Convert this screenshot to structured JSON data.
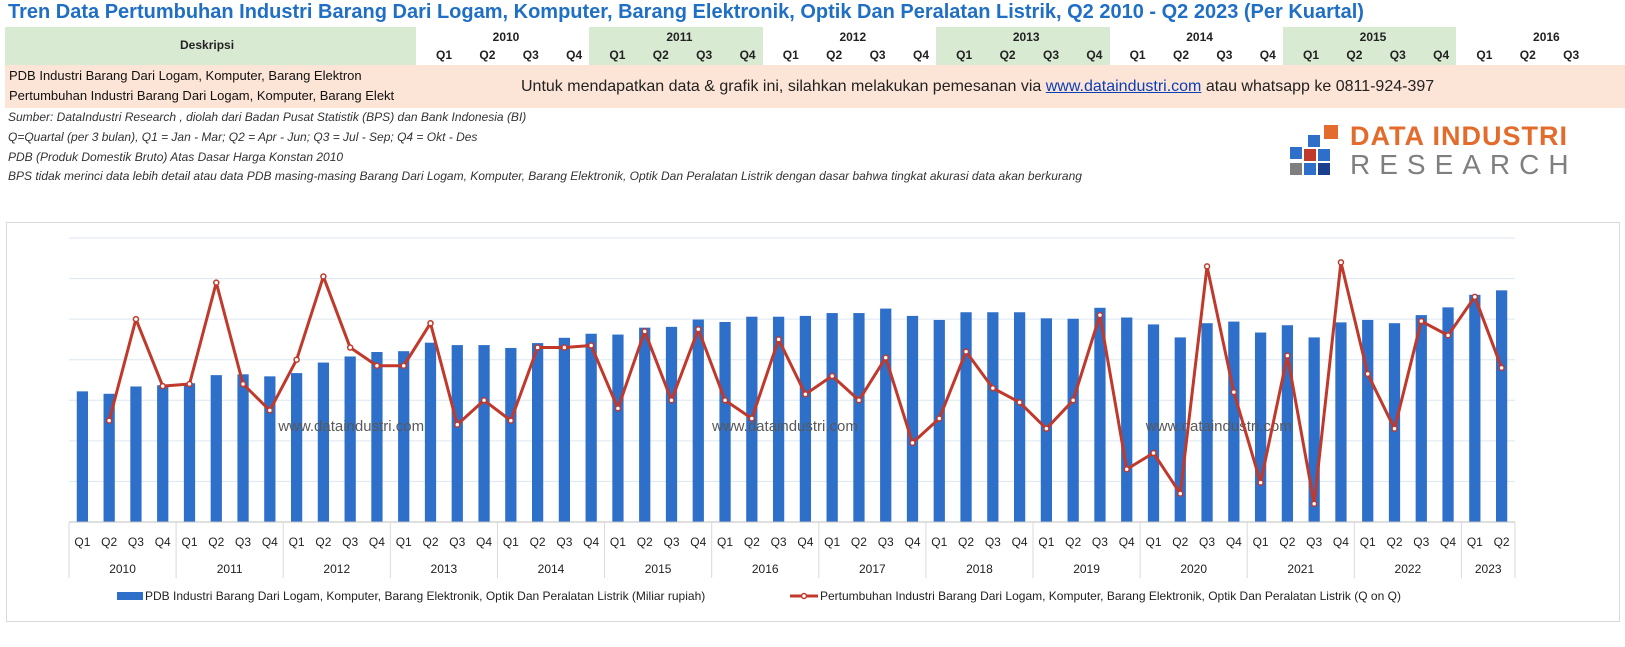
{
  "title": "Tren Data Pertumbuhan Industri Barang Dari Logam, Komputer, Barang Elektronik, Optik Dan Peralatan Listrik, Q2 2010 - Q2 2023 (Per Kuartal)",
  "table": {
    "description_header": "Deskripsi",
    "years": [
      "2010",
      "2011",
      "2012",
      "2013",
      "2014",
      "2015",
      "2016"
    ],
    "quarters": [
      "Q1",
      "Q2",
      "Q3",
      "Q4"
    ],
    "row1_label": "PDB Industri Barang Dari Logam, Komputer, Barang Elektron",
    "row2_label": "Pertumbuhan Industri Barang Dari Logam, Komputer, Barang Elekt",
    "order_msg_before": "Untuk mendapatkan data & grafik ini, silahkan melakukan pemesanan via ",
    "order_link": "www.dataindustri.com",
    "order_msg_after": " atau whatsapp ke 0811-924-397"
  },
  "notes": [
    "Sumber: DataIndustri Research , diolah dari Badan Pusat Statistik (BPS) dan Bank Indonesia (BI)",
    "Q=Quartal (per 3 bulan), Q1 = Jan - Mar; Q2 = Apr - Jun; Q3 = Jul - Sep; Q4 = Okt - Des",
    "PDB (Produk Domestik Bruto) Atas Dasar Harga Konstan 2010",
    "BPS tidak merinci data lebih detail atau data PDB masing-masing Barang Dari Logam, Komputer, Barang Elektronik, Optik Dan Peralatan Listrik dengan dasar bahwa tingkat akurasi data akan berkurang"
  ],
  "logo": {
    "line1": "DATA INDUSTRI",
    "line2": "RESEARCH"
  },
  "colors": {
    "title": "#1f6fc5",
    "bar": "#2e6fc9",
    "line": "#c0392b",
    "band_green": "#d9ead3",
    "band_peach": "#fce4d6"
  },
  "chart_data": {
    "type": "bar",
    "watermark": "www.dataindustri.com",
    "grid": true,
    "legend_position": "bottom",
    "years": [
      "2010",
      "2011",
      "2012",
      "2013",
      "2014",
      "2015",
      "2016",
      "2017",
      "2018",
      "2019",
      "2020",
      "2021",
      "2022",
      "2023"
    ],
    "categories": [
      "Q1",
      "Q2",
      "Q3",
      "Q4",
      "Q1",
      "Q2",
      "Q3",
      "Q4",
      "Q1",
      "Q2",
      "Q3",
      "Q4",
      "Q1",
      "Q2",
      "Q3",
      "Q4",
      "Q1",
      "Q2",
      "Q3",
      "Q4",
      "Q1",
      "Q2",
      "Q3",
      "Q4",
      "Q1",
      "Q2",
      "Q3",
      "Q4",
      "Q1",
      "Q2",
      "Q3",
      "Q4",
      "Q1",
      "Q2",
      "Q3",
      "Q4",
      "Q1",
      "Q2",
      "Q3",
      "Q4",
      "Q1",
      "Q2",
      "Q3",
      "Q4",
      "Q1",
      "Q2",
      "Q3",
      "Q4",
      "Q1",
      "Q2",
      "Q3",
      "Q4",
      "Q1",
      "Q2"
    ],
    "series": [
      {
        "name": "PDB Industri Barang Dari Logam, Komputer, Barang Elektronik, Optik Dan Peralatan Listrik (Miliar rupiah)",
        "type": "bar",
        "values": [
          3.22,
          3.16,
          3.34,
          3.37,
          3.42,
          3.62,
          3.64,
          3.59,
          3.67,
          3.93,
          4.08,
          4.19,
          4.21,
          4.42,
          4.36,
          4.36,
          4.29,
          4.41,
          4.54,
          4.64,
          4.62,
          4.79,
          4.81,
          4.99,
          4.93,
          5.06,
          5.06,
          5.08,
          5.15,
          5.15,
          5.26,
          5.08,
          4.98,
          5.17,
          5.17,
          5.17,
          5.02,
          5.01,
          5.28,
          5.04,
          4.87,
          4.55,
          4.9,
          4.94,
          4.67,
          4.85,
          4.55,
          4.92,
          4.98,
          4.9,
          5.1,
          5.29,
          5.6,
          5.71
        ]
      },
      {
        "name": "Pertumbuhan Industri Barang Dari Logam, Komputer, Barang Elektronik, Optik Dan Peralatan Listrik (Q on Q)",
        "type": "line",
        "values": [
          null,
          2.5,
          5.0,
          3.35,
          3.4,
          5.9,
          3.4,
          2.75,
          4.0,
          6.05,
          4.3,
          3.85,
          3.85,
          4.9,
          2.4,
          3.0,
          2.5,
          4.3,
          4.3,
          4.35,
          2.8,
          4.7,
          3.0,
          4.75,
          3.0,
          2.55,
          4.5,
          3.15,
          3.6,
          3.0,
          4.05,
          1.95,
          2.55,
          4.2,
          3.3,
          2.95,
          2.3,
          3.0,
          5.1,
          1.3,
          1.7,
          0.7,
          6.3,
          3.2,
          0.97,
          4.1,
          0.45,
          6.4,
          3.65,
          2.3,
          4.95,
          4.6,
          5.55,
          3.8
        ]
      }
    ]
  }
}
